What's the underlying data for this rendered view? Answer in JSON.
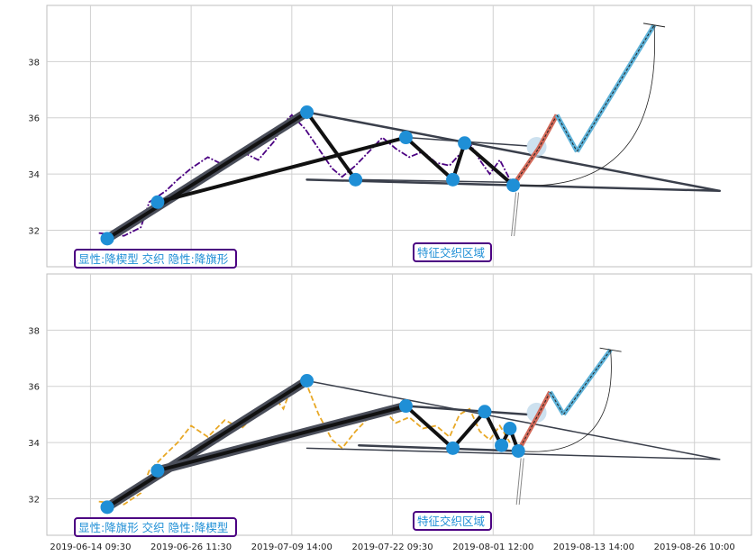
{
  "chart_data": [
    {
      "type": "line",
      "ylim": [
        30.7,
        40.0
      ],
      "yticks": [
        32,
        34,
        36,
        38
      ],
      "grid": true,
      "price_color": "#4b0082",
      "price_style": "dash-dot",
      "price_series": [
        {
          "x": 0.5,
          "y": 31.9
        },
        {
          "x": 2.0,
          "y": 31.8
        },
        {
          "x": 3.0,
          "y": 32.1
        },
        {
          "x": 3.5,
          "y": 33.0
        },
        {
          "x": 4.5,
          "y": 33.4
        },
        {
          "x": 5.2,
          "y": 33.8
        },
        {
          "x": 6.0,
          "y": 34.2
        },
        {
          "x": 7.0,
          "y": 34.6
        },
        {
          "x": 8.0,
          "y": 34.3
        },
        {
          "x": 9.0,
          "y": 34.8
        },
        {
          "x": 10.0,
          "y": 34.5
        },
        {
          "x": 11.0,
          "y": 35.2
        },
        {
          "x": 11.5,
          "y": 35.8
        },
        {
          "x": 12.0,
          "y": 36.1
        },
        {
          "x": 12.8,
          "y": 35.6
        },
        {
          "x": 13.6,
          "y": 34.9
        },
        {
          "x": 14.4,
          "y": 34.2
        },
        {
          "x": 15.0,
          "y": 33.9
        },
        {
          "x": 15.8,
          "y": 34.3
        },
        {
          "x": 16.6,
          "y": 34.8
        },
        {
          "x": 17.4,
          "y": 35.3
        },
        {
          "x": 18.2,
          "y": 34.9
        },
        {
          "x": 19.0,
          "y": 34.6
        },
        {
          "x": 19.8,
          "y": 34.8
        },
        {
          "x": 20.6,
          "y": 34.4
        },
        {
          "x": 21.4,
          "y": 34.3
        },
        {
          "x": 22.0,
          "y": 34.7
        },
        {
          "x": 22.6,
          "y": 35.1
        },
        {
          "x": 23.2,
          "y": 34.5
        },
        {
          "x": 23.8,
          "y": 34.0
        },
        {
          "x": 24.4,
          "y": 34.5
        },
        {
          "x": 25.0,
          "y": 33.8
        }
      ],
      "points": [
        {
          "x": 1,
          "y": 31.7
        },
        {
          "x": 4,
          "y": 33.0
        },
        {
          "x": 12.9,
          "y": 36.2
        },
        {
          "x": 15.8,
          "y": 33.8
        },
        {
          "x": 18.8,
          "y": 35.3
        },
        {
          "x": 21.6,
          "y": 33.8
        },
        {
          "x": 22.3,
          "y": 35.1
        },
        {
          "x": 25.2,
          "y": 33.6
        }
      ],
      "trend_lines": [
        {
          "x1": 1,
          "y1": 31.7,
          "x2": 12.9,
          "y2": 36.2,
          "w": 10,
          "color": "#4a4e5a"
        },
        {
          "x1": 1,
          "y1": 31.7,
          "x2": 12.9,
          "y2": 36.2,
          "w": 4,
          "color": "#111111"
        },
        {
          "x1": 4,
          "y1": 33.0,
          "x2": 18.8,
          "y2": 35.3,
          "w": 4,
          "color": "#111111"
        },
        {
          "x1": 12.9,
          "y1": 36.2,
          "x2": 15.8,
          "y2": 33.8,
          "w": 4,
          "color": "#111111"
        },
        {
          "x1": 18.8,
          "y1": 35.3,
          "x2": 21.6,
          "y2": 33.8,
          "w": 4,
          "color": "#111111"
        },
        {
          "x1": 21.6,
          "y1": 33.8,
          "x2": 22.3,
          "y2": 35.1,
          "w": 4,
          "color": "#111111"
        },
        {
          "x1": 22.3,
          "y1": 35.1,
          "x2": 25.2,
          "y2": 33.6,
          "w": 4,
          "color": "#111111"
        },
        {
          "x1": 12.9,
          "y1": 36.2,
          "x2": 37.5,
          "y2": 33.4,
          "w": 2.5,
          "color": "#3a3f4b"
        },
        {
          "x1": 12.9,
          "y1": 33.8,
          "x2": 37.5,
          "y2": 33.4,
          "w": 2.5,
          "color": "#3a3f4b"
        },
        {
          "x1": 18.8,
          "y1": 35.3,
          "x2": 26.0,
          "y2": 35.0,
          "w": 1.5,
          "color": "#3a3f4b"
        },
        {
          "x1": 16.0,
          "y1": 33.8,
          "x2": 25.5,
          "y2": 33.7,
          "w": 1.5,
          "color": "#3a3f4b"
        }
      ],
      "projection": [
        {
          "x": 25.2,
          "y": 33.6,
          "color": "#a8c864"
        },
        {
          "x": 26.7,
          "y": 34.9,
          "color": "#d36a5a"
        },
        {
          "x": 27.8,
          "y": 36.1,
          "color": "#d36a5a"
        },
        {
          "x": 29.0,
          "y": 34.8,
          "color": "#5fb3d9"
        },
        {
          "x": 33.6,
          "y": 39.3,
          "color": "#5fb3d9"
        }
      ],
      "label_left": "显性:降楔型 交织 隐性:降旗形",
      "label_zone": "特征交织区域"
    },
    {
      "type": "line",
      "ylim": [
        30.7,
        40.0
      ],
      "yticks": [
        32,
        34,
        36,
        38
      ],
      "grid": true,
      "price_color": "#e8a826",
      "price_style": "dash",
      "price_series": [
        {
          "x": 0.5,
          "y": 31.9
        },
        {
          "x": 2.0,
          "y": 31.8
        },
        {
          "x": 3.0,
          "y": 32.2
        },
        {
          "x": 3.5,
          "y": 33.0
        },
        {
          "x": 4.5,
          "y": 33.6
        },
        {
          "x": 5.2,
          "y": 34.0
        },
        {
          "x": 6.0,
          "y": 34.6
        },
        {
          "x": 7.0,
          "y": 34.2
        },
        {
          "x": 8.0,
          "y": 34.8
        },
        {
          "x": 9.0,
          "y": 34.5
        },
        {
          "x": 10.0,
          "y": 35.1
        },
        {
          "x": 11.0,
          "y": 35.6
        },
        {
          "x": 11.5,
          "y": 35.2
        },
        {
          "x": 12.0,
          "y": 36.0
        },
        {
          "x": 12.8,
          "y": 36.2
        },
        {
          "x": 13.6,
          "y": 35.0
        },
        {
          "x": 14.4,
          "y": 34.1
        },
        {
          "x": 15.0,
          "y": 33.8
        },
        {
          "x": 15.8,
          "y": 34.4
        },
        {
          "x": 16.6,
          "y": 34.9
        },
        {
          "x": 17.4,
          "y": 35.2
        },
        {
          "x": 18.2,
          "y": 34.7
        },
        {
          "x": 19.0,
          "y": 34.9
        },
        {
          "x": 19.8,
          "y": 34.5
        },
        {
          "x": 20.6,
          "y": 34.6
        },
        {
          "x": 21.4,
          "y": 34.2
        },
        {
          "x": 22.0,
          "y": 35.0
        },
        {
          "x": 22.6,
          "y": 35.2
        },
        {
          "x": 23.2,
          "y": 34.4
        },
        {
          "x": 23.8,
          "y": 34.1
        },
        {
          "x": 24.4,
          "y": 34.6
        },
        {
          "x": 25.0,
          "y": 34.0
        }
      ],
      "points": [
        {
          "x": 1,
          "y": 31.7
        },
        {
          "x": 4,
          "y": 33.0
        },
        {
          "x": 12.9,
          "y": 36.2
        },
        {
          "x": 18.8,
          "y": 35.3
        },
        {
          "x": 21.6,
          "y": 33.8
        },
        {
          "x": 23.5,
          "y": 35.1
        },
        {
          "x": 24.5,
          "y": 33.9
        },
        {
          "x": 25.0,
          "y": 34.5
        },
        {
          "x": 25.5,
          "y": 33.7
        }
      ],
      "trend_lines": [
        {
          "x1": 1,
          "y1": 31.7,
          "x2": 12.9,
          "y2": 36.2,
          "w": 10,
          "color": "#4a4e5a"
        },
        {
          "x1": 1,
          "y1": 31.7,
          "x2": 12.9,
          "y2": 36.2,
          "w": 4,
          "color": "#111111"
        },
        {
          "x1": 4,
          "y1": 33.0,
          "x2": 18.8,
          "y2": 35.3,
          "w": 10,
          "color": "#4a4e5a"
        },
        {
          "x1": 4,
          "y1": 33.0,
          "x2": 18.8,
          "y2": 35.3,
          "w": 4,
          "color": "#111111"
        },
        {
          "x1": 18.8,
          "y1": 35.3,
          "x2": 21.6,
          "y2": 33.8,
          "w": 4,
          "color": "#111111"
        },
        {
          "x1": 21.6,
          "y1": 33.8,
          "x2": 23.5,
          "y2": 35.1,
          "w": 4,
          "color": "#111111"
        },
        {
          "x1": 23.5,
          "y1": 35.1,
          "x2": 24.5,
          "y2": 33.9,
          "w": 4,
          "color": "#111111"
        },
        {
          "x1": 24.5,
          "y1": 33.9,
          "x2": 25.0,
          "y2": 34.5,
          "w": 4,
          "color": "#111111"
        },
        {
          "x1": 25.0,
          "y1": 34.5,
          "x2": 25.5,
          "y2": 33.7,
          "w": 4,
          "color": "#111111"
        },
        {
          "x1": 12.9,
          "y1": 36.2,
          "x2": 37.5,
          "y2": 33.4,
          "w": 1.5,
          "color": "#3a3f4b"
        },
        {
          "x1": 12.9,
          "y1": 33.8,
          "x2": 37.5,
          "y2": 33.4,
          "w": 1.5,
          "color": "#3a3f4b"
        },
        {
          "x1": 18.8,
          "y1": 35.3,
          "x2": 26.0,
          "y2": 35.0,
          "w": 2.5,
          "color": "#3a3f4b"
        },
        {
          "x1": 16.0,
          "y1": 33.9,
          "x2": 25.5,
          "y2": 33.7,
          "w": 2.5,
          "color": "#3a3f4b"
        }
      ],
      "projection": [
        {
          "x": 25.5,
          "y": 33.7,
          "color": "#a8c864"
        },
        {
          "x": 26.7,
          "y": 35.0,
          "color": "#d36a5a"
        },
        {
          "x": 27.4,
          "y": 35.8,
          "color": "#d36a5a"
        },
        {
          "x": 28.2,
          "y": 35.0,
          "color": "#5fb3d9"
        },
        {
          "x": 31.0,
          "y": 37.3,
          "color": "#5fb3d9"
        }
      ],
      "label_left": "显性:降旗形 交织 隐性:降楔型",
      "label_zone": "特征交织区域"
    }
  ],
  "x_axis": {
    "range": [
      -2.6,
      39.4
    ],
    "ticks": [
      {
        "pos": 0,
        "label": "2019-06-14 09:30"
      },
      {
        "pos": 6,
        "label": "2019-06-26 11:30"
      },
      {
        "pos": 12,
        "label": "2019-07-09 14:00"
      },
      {
        "pos": 18,
        "label": "2019-07-22 09:30"
      },
      {
        "pos": 24,
        "label": "2019-08-01 12:00"
      },
      {
        "pos": 30,
        "label": "2019-08-13 14:00"
      },
      {
        "pos": 36,
        "label": "2019-08-26 10:00"
      }
    ]
  },
  "colors": {
    "grid": "#d0d0d0",
    "frame": "#bfbfbf",
    "point": "#1f8fd6",
    "label_border": "#4b0082",
    "label_text": "#1f8fd6"
  }
}
